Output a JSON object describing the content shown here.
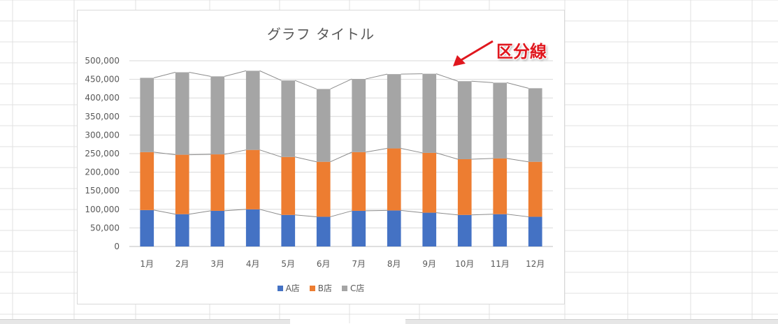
{
  "chart_data": {
    "type": "bar",
    "stacked": true,
    "title": "グラフ タイトル",
    "categories": [
      "1月",
      "2月",
      "3月",
      "4月",
      "5月",
      "6月",
      "7月",
      "8月",
      "9月",
      "10月",
      "11月",
      "12月"
    ],
    "series": [
      {
        "name": "A店",
        "color": "#4472C4",
        "values": [
          98000,
          87000,
          96000,
          100000,
          85000,
          80000,
          96000,
          97000,
          91000,
          85000,
          87000,
          80000
        ]
      },
      {
        "name": "B店",
        "color": "#ED7D31",
        "values": [
          156000,
          160000,
          152000,
          160000,
          156000,
          148000,
          158000,
          167000,
          161000,
          150000,
          150000,
          148000
        ]
      },
      {
        "name": "C店",
        "color": "#A5A5A5",
        "values": [
          200000,
          222000,
          210000,
          213000,
          206000,
          196000,
          197000,
          200000,
          213000,
          210000,
          204000,
          198000
        ]
      }
    ],
    "ylim": [
      0,
      500000
    ],
    "yticks": [
      "0",
      "50,000",
      "100,000",
      "150,000",
      "200,000",
      "250,000",
      "300,000",
      "350,000",
      "400,000",
      "450,000",
      "500,000"
    ],
    "series_lines": true,
    "gridlines": true,
    "legend_position": "bottom"
  },
  "annotation": {
    "label": "区分線",
    "color": "#E0171E"
  }
}
